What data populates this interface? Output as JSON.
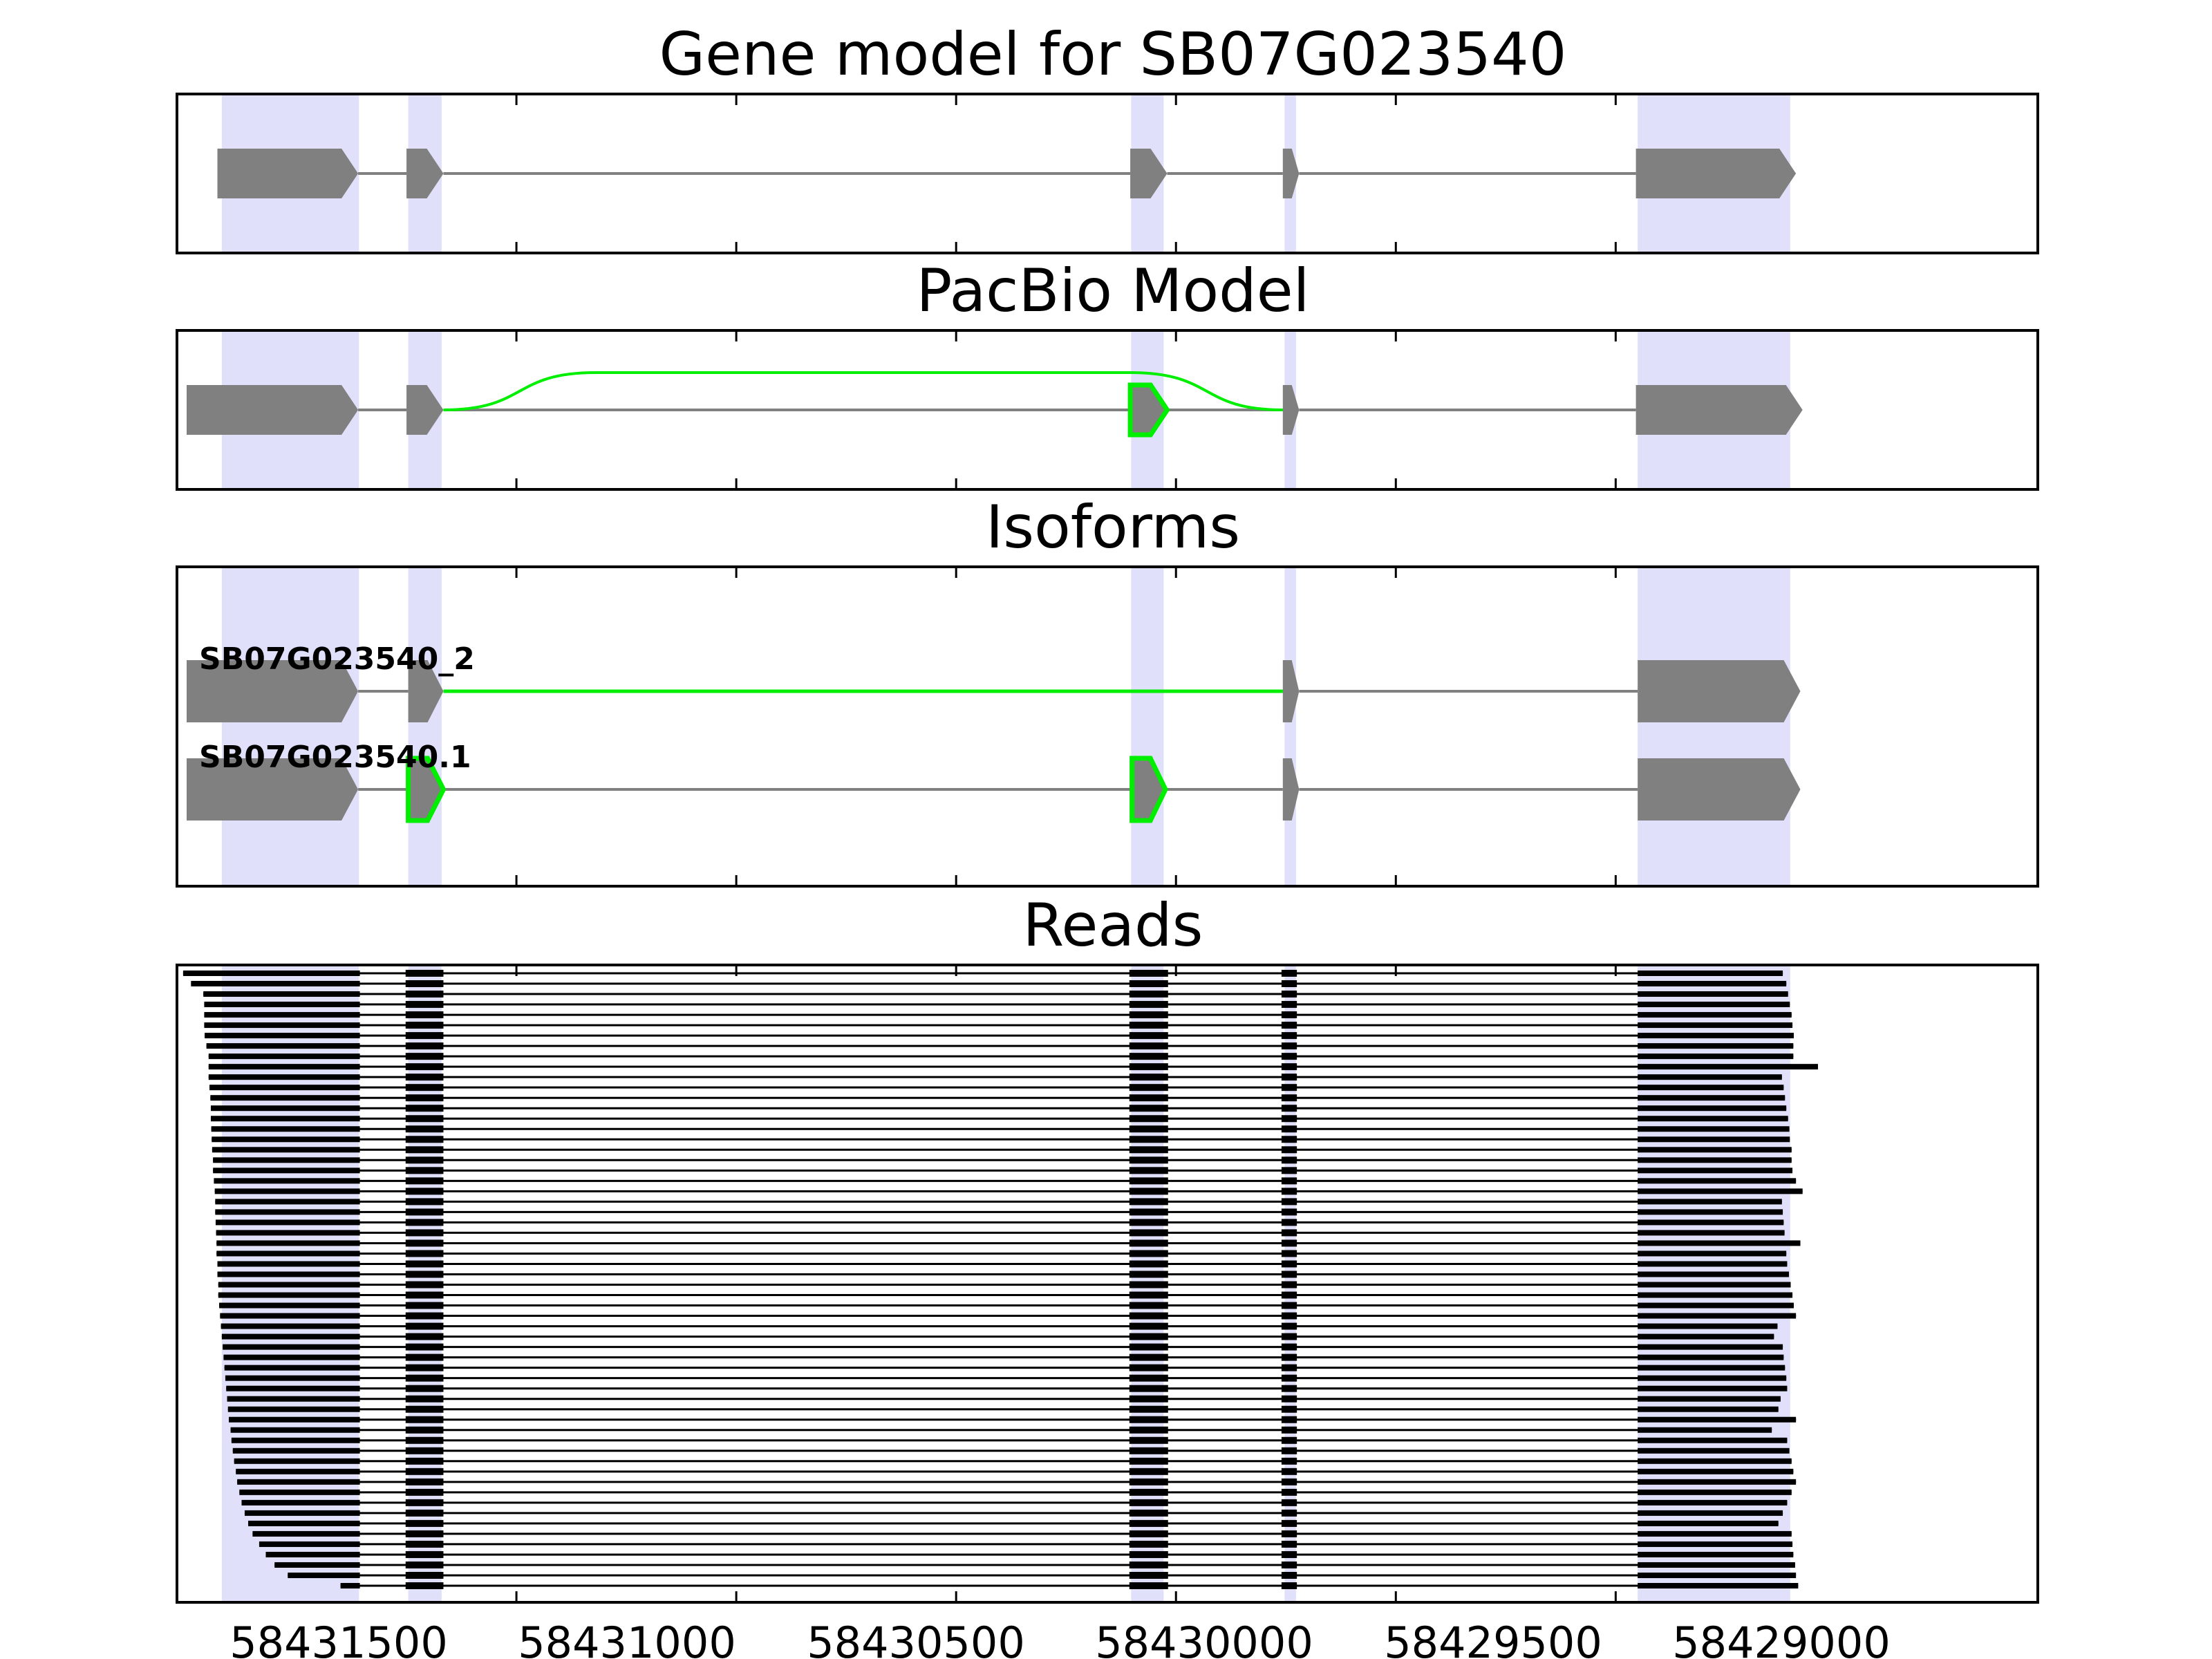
{
  "chart_data": {
    "type": "gene-structure",
    "gene_id": "SB07G023540",
    "xlim": [
      58432272,
      58428040
    ],
    "x_ticks": [
      58431500,
      58431000,
      58430500,
      58430000,
      58429500,
      58429000
    ],
    "x_tick_labels": [
      "58431500",
      "58431000",
      "58430500",
      "58430000",
      "58429500",
      "58429000"
    ],
    "colors": {
      "exon": "#808080",
      "intron": "#808080",
      "highlight_band": "#e0e0fb",
      "novel": "#00ee00",
      "read": "#000000",
      "axes": "#000000"
    },
    "exon_bands": [
      [
        58432170,
        58431858
      ],
      [
        58431746,
        58431670
      ],
      [
        58430102,
        58430028
      ],
      [
        58429753,
        58429727
      ],
      [
        58428950,
        58428603
      ]
    ],
    "panels": [
      {
        "title": "Gene model for SB07G023540",
        "tracks": [
          {
            "label": "",
            "exons": [
              [
                58432180,
                58431860
              ],
              [
                58431750,
                58431666
              ],
              [
                58430104,
                58430020
              ],
              [
                58429757,
                58429720
              ],
              [
                58428954,
                58428590
              ]
            ],
            "novel_exons": [],
            "novel_junctions": []
          }
        ]
      },
      {
        "title": "PacBio Model",
        "tracks": [
          {
            "label": "",
            "exons": [
              [
                58432250,
                58431860
              ],
              [
                58431750,
                58431666
              ],
              [
                58430104,
                58430020
              ],
              [
                58429757,
                58429720
              ],
              [
                58428954,
                58428575
              ]
            ],
            "novel_exons": [
              2
            ],
            "novel_junctions": [
              [
                1,
                3
              ]
            ]
          }
        ]
      },
      {
        "title": "Isoforms",
        "tracks": [
          {
            "label": "SB07G023540_2",
            "exons": [
              [
                58432250,
                58431860
              ],
              [
                58431746,
                58431666
              ],
              [
                58429757,
                58429720
              ],
              [
                58428950,
                58428580
              ]
            ],
            "novel_exons": [],
            "novel_junctions": [
              [
                1,
                2
              ]
            ]
          },
          {
            "label": "SB07G023540.1",
            "exons": [
              [
                58432250,
                58431860
              ],
              [
                58431746,
                58431666
              ],
              [
                58430100,
                58430024
              ],
              [
                58429757,
                58429720
              ],
              [
                58428950,
                58428580
              ]
            ],
            "novel_exons": [
              1,
              2
            ],
            "novel_junctions": []
          }
        ]
      }
    ],
    "reads_panel": {
      "title": "Reads",
      "read_count": 60,
      "left_exon_end": 58431856,
      "inner_exons": [
        [
          58431752,
          58431666
        ],
        [
          58430106,
          58430018
        ],
        [
          58429760,
          58429725
        ]
      ],
      "right_exon_start": 58428950,
      "exon3_skipped_first_n": 11,
      "read_left_starts": [
        58432258,
        58432240,
        58432212,
        58432210,
        58432210,
        58432210,
        58432209,
        58432205,
        58432200,
        58432200,
        58432200,
        58432198,
        58432196,
        58432195,
        58432195,
        58432194,
        58432193,
        58432192,
        58432190,
        58432190,
        58432188,
        58432186,
        58432185,
        58432185,
        58432184,
        58432183,
        58432182,
        58432182,
        58432180,
        58432180,
        58432178,
        58432178,
        58432176,
        58432174,
        58432172,
        58432170,
        58432168,
        58432166,
        58432164,
        58432162,
        58432160,
        58432158,
        58432156,
        58432154,
        58432150,
        58432148,
        58432145,
        58432142,
        58432138,
        58432135,
        58432130,
        58432125,
        58432118,
        58432110,
        58432100,
        58432085,
        58432070,
        58432050,
        58432020,
        58431900
      ],
      "read_right_ends": [
        58428620,
        58428612,
        58428608,
        58428604,
        58428600,
        58428598,
        58428595,
        58428596,
        58428596,
        58428540,
        58428622,
        58428618,
        58428615,
        58428612,
        58428608,
        58428605,
        58428604,
        58428600,
        58428600,
        58428598,
        58428590,
        58428575,
        58428622,
        58428620,
        58428618,
        58428616,
        58428580,
        58428612,
        58428610,
        58428606,
        58428602,
        58428598,
        58428595,
        58428590,
        58428632,
        58428640,
        58428620,
        58428618,
        58428615,
        58428612,
        58428610,
        58428625,
        58428630,
        58428590,
        58428645,
        58428610,
        58428605,
        58428600,
        58428596,
        58428590,
        58428600,
        58428610,
        58428620,
        58428630,
        58428600,
        58428598,
        58428596,
        58428592,
        58428590,
        58428585
      ]
    }
  }
}
